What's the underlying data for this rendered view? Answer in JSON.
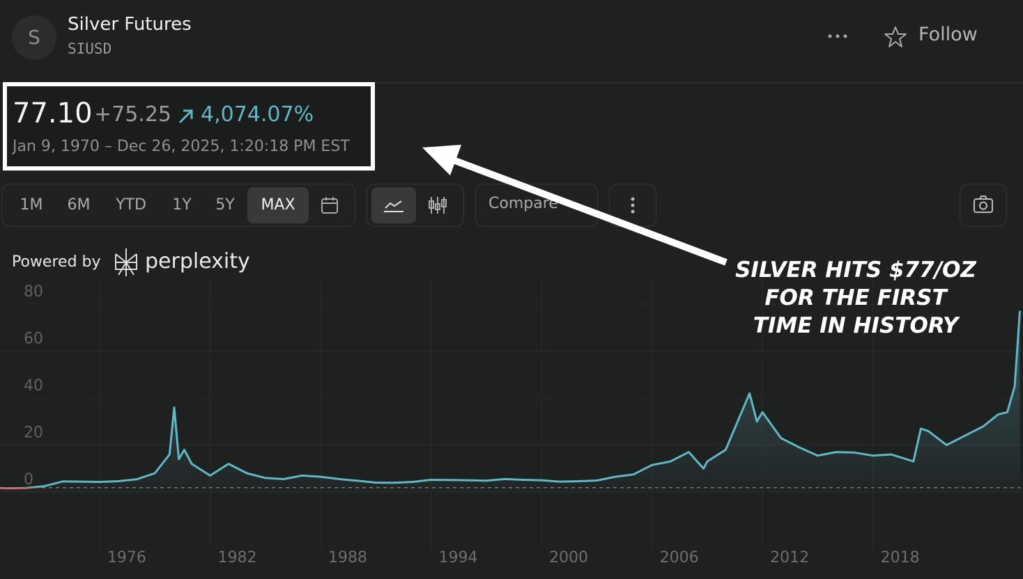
{
  "header": {
    "avatar": "S",
    "name": "Silver Futures",
    "symbol": "SIUSD",
    "follow": "Follow"
  },
  "quote": {
    "price": "77.10",
    "change": "+75.25",
    "change_percent": "4,074.07%",
    "range": "Jan 9, 1970 – Dec 26, 2025, 1:20:18 PM EST"
  },
  "toolbar": {
    "ranges": [
      "1M",
      "6M",
      "YTD",
      "1Y",
      "5Y",
      "MAX"
    ],
    "selected": "MAX",
    "compare": "Compare"
  },
  "attribution": {
    "prefix": "Powered by",
    "brand": "perplexity"
  },
  "annotation": {
    "lines": [
      "SILVER HITS $77/OZ",
      "FOR THE FIRST",
      "TIME IN HISTORY"
    ]
  },
  "chart_data": {
    "type": "line",
    "color": "#5fb8c4",
    "down_color": "#e06060",
    "baseline": 1.85,
    "x": [
      1970,
      1971,
      1972,
      1973,
      1974,
      1975,
      1976,
      1977,
      1978,
      1979,
      1979.8,
      1980.05,
      1980.3,
      1980.6,
      1981,
      1982,
      1983,
      1984,
      1985,
      1986,
      1987,
      1988,
      1989,
      1990,
      1991,
      1992,
      1993,
      1994,
      1995,
      1996,
      1997,
      1998,
      1999,
      2000,
      2001,
      2002,
      2003,
      2004,
      2005,
      2006,
      2007,
      2008,
      2008.8,
      2009,
      2010,
      2011.3,
      2011.7,
      2012,
      2013,
      2014,
      2015,
      2016,
      2017,
      2018,
      2019,
      2020.2,
      2020.6,
      2021,
      2022,
      2023,
      2024,
      2024.8,
      2025.3,
      2025.7,
      2025.98
    ],
    "values": [
      1.8,
      1.55,
      1.7,
      2.5,
      4.5,
      4.4,
      4.3,
      4.6,
      5.4,
      8,
      16,
      36,
      14,
      18,
      12,
      7,
      12,
      8,
      6,
      5.5,
      7,
      6.5,
      5.5,
      4.8,
      4,
      3.9,
      4.3,
      5.2,
      5.1,
      5,
      4.8,
      5.5,
      5.2,
      5,
      4.4,
      4.6,
      4.9,
      6.5,
      7.5,
      11.5,
      13,
      17,
      10,
      13,
      18,
      42,
      30,
      34,
      23,
      19,
      15.5,
      17,
      16.8,
      15.5,
      16,
      13,
      27,
      26,
      20,
      24,
      28,
      33,
      34,
      45,
      77.1
    ],
    "xlim": [
      1970.59,
      2026.15
    ],
    "xticks": [
      1976,
      1982,
      1988,
      1994,
      2000,
      2006,
      2012,
      2018
    ],
    "ylim": [
      0,
      80
    ],
    "yticks": [
      0,
      20,
      40,
      60,
      80
    ],
    "grid": true
  }
}
